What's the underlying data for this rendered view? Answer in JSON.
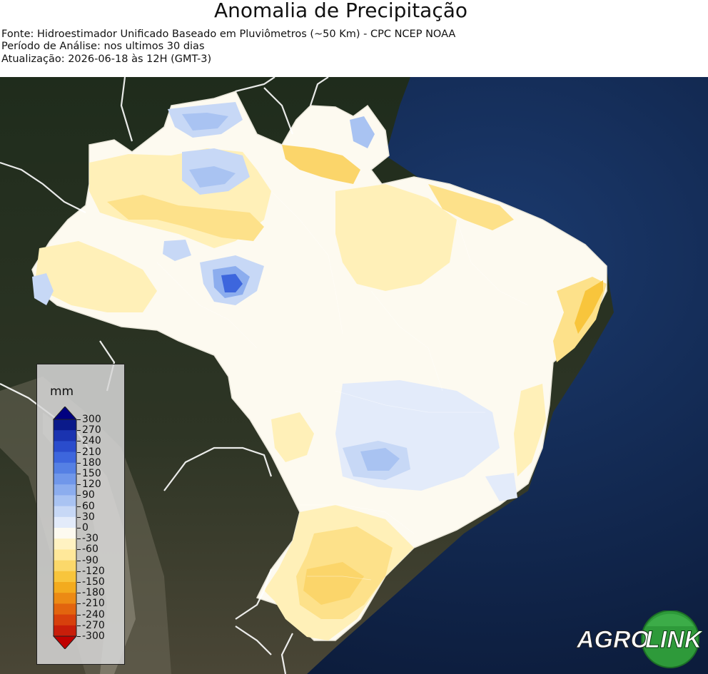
{
  "header": {
    "title": "Anomalia de Precipitação",
    "source": "Fonte: Hidroestimador Unificado Baseado em Pluviômetros (~50 Km) - CPC NCEP NOAA",
    "period": "Período de Análise: nos ultimos 30 dias",
    "updated": "Atualização: 2026-06-18 às 12H (GMT-3)"
  },
  "legend": {
    "unit": "mm",
    "ticks": [
      "300",
      "270",
      "240",
      "210",
      "180",
      "150",
      "120",
      "90",
      "60",
      "30",
      "0",
      "-30",
      "-60",
      "-90",
      "-120",
      "-150",
      "-180",
      "-210",
      "-240",
      "-270",
      "-300"
    ],
    "colors": [
      "#0a1a8a",
      "#1a33b0",
      "#2a4ccc",
      "#3d66dd",
      "#5580e4",
      "#7097ea",
      "#8cadee",
      "#a9c3f2",
      "#c7d8f6",
      "#e3ebfa",
      "#fdfaf0",
      "#fff2c2",
      "#ffe89a",
      "#fbd86a",
      "#f8c53c",
      "#f3ab1e",
      "#ec8a14",
      "#e2640e",
      "#d7400c",
      "#c81e0a"
    ]
  },
  "logo": {
    "text_left": "AGRO",
    "text_right": "LINK"
  }
}
